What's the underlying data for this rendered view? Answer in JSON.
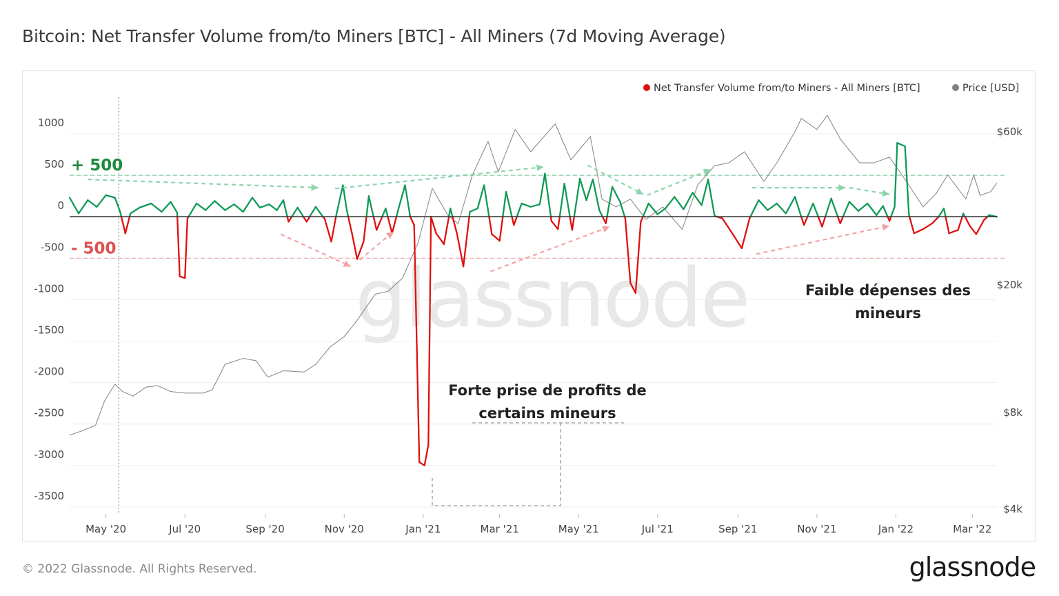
{
  "title": "Bitcoin: Net Transfer Volume from/to Miners [BTC] - All Miners (7d Moving Average)",
  "footer": {
    "copyright": "© 2022 Glassnode. All Rights Reserved.",
    "logo": "glassnode"
  },
  "watermark": "glassnode",
  "chart_data": {
    "type": "line",
    "title": "Bitcoin: Net Transfer Volume from/to Miners [BTC] - All Miners (7d Moving Average)",
    "legend_position": "top-right",
    "grid": true,
    "x_tick_labels": [
      "May '20",
      "Jul '20",
      "Sep '20",
      "Nov '20",
      "Jan '21",
      "Mar '21",
      "May '21",
      "Jul '21",
      "Sep '21",
      "Nov '21",
      "Jan '22",
      "Mar '22"
    ],
    "x_range": [
      "2020-04-03",
      "2022-03-20"
    ],
    "y_left": {
      "ticks": [
        1000,
        500,
        0,
        -500,
        -1000,
        -1500,
        -2000,
        -2500,
        -3000,
        -3500
      ],
      "range": [
        -3500,
        1000
      ]
    },
    "y_right": {
      "ticks": [
        "$60k",
        "$20k",
        "$8k",
        "$4k"
      ],
      "scale": "log",
      "tick_values": [
        60000,
        20000,
        8000,
        4000
      ]
    },
    "legend": [
      {
        "label": "Net Transfer Volume from/to Miners - All Miners [BTC]",
        "color": "#e01010"
      },
      {
        "label": "Price [USD]",
        "color": "#808080"
      }
    ],
    "colors": {
      "positive": "#0f9a55",
      "negative": "#e01010",
      "price": "#8c8c8c",
      "zero_line": "#333333"
    },
    "reference_lines": [
      {
        "label": "+ 500",
        "value": 500,
        "color": "#7fcfa2"
      },
      {
        "label": "- 500",
        "value": -500,
        "color": "#f0a8a8"
      }
    ],
    "annotations": [
      {
        "text": [
          "Forte prise de profits de",
          "certains mineurs"
        ],
        "target": "2021-01-01"
      },
      {
        "text": [
          "Faible dépenses des",
          "mineurs"
        ],
        "target": "2022-01"
      }
    ],
    "series": [
      {
        "name": "Net Transfer Volume from/to Miners - All Miners [BTC]",
        "points": [
          [
            "2020-04-03",
            230
          ],
          [
            "2020-04-10",
            40
          ],
          [
            "2020-04-17",
            200
          ],
          [
            "2020-04-24",
            120
          ],
          [
            "2020-05-01",
            260
          ],
          [
            "2020-05-08",
            230
          ],
          [
            "2020-05-12",
            60
          ],
          [
            "2020-05-16",
            -200
          ],
          [
            "2020-05-20",
            40
          ],
          [
            "2020-05-27",
            110
          ],
          [
            "2020-06-05",
            160
          ],
          [
            "2020-06-13",
            60
          ],
          [
            "2020-06-20",
            180
          ],
          [
            "2020-06-25",
            50
          ],
          [
            "2020-06-27",
            -720
          ],
          [
            "2020-07-01",
            -740
          ],
          [
            "2020-07-03",
            -20
          ],
          [
            "2020-07-10",
            160
          ],
          [
            "2020-07-17",
            80
          ],
          [
            "2020-07-24",
            190
          ],
          [
            "2020-08-01",
            80
          ],
          [
            "2020-08-08",
            150
          ],
          [
            "2020-08-15",
            60
          ],
          [
            "2020-08-22",
            230
          ],
          [
            "2020-08-28",
            110
          ],
          [
            "2020-09-04",
            150
          ],
          [
            "2020-09-10",
            80
          ],
          [
            "2020-09-15",
            200
          ],
          [
            "2020-09-19",
            -60
          ],
          [
            "2020-09-26",
            110
          ],
          [
            "2020-10-03",
            -60
          ],
          [
            "2020-10-10",
            120
          ],
          [
            "2020-10-17",
            -30
          ],
          [
            "2020-10-22",
            -300
          ],
          [
            "2020-10-26",
            30
          ],
          [
            "2020-10-31",
            380
          ],
          [
            "2020-11-03",
            80
          ],
          [
            "2020-11-07",
            -200
          ],
          [
            "2020-11-11",
            -510
          ],
          [
            "2020-11-16",
            -300
          ],
          [
            "2020-11-20",
            250
          ],
          [
            "2020-11-26",
            -160
          ],
          [
            "2020-12-03",
            100
          ],
          [
            "2020-12-08",
            -200
          ],
          [
            "2020-12-13",
            100
          ],
          [
            "2020-12-18",
            380
          ],
          [
            "2020-12-22",
            0
          ],
          [
            "2020-12-25",
            -100
          ],
          [
            "2020-12-27",
            -1500
          ],
          [
            "2020-12-29",
            -2960
          ],
          [
            "2021-01-02",
            -3000
          ],
          [
            "2021-01-05",
            -2750
          ],
          [
            "2021-01-07",
            0
          ],
          [
            "2021-01-11",
            -200
          ],
          [
            "2021-01-17",
            -330
          ],
          [
            "2021-01-22",
            100
          ],
          [
            "2021-01-27",
            -200
          ],
          [
            "2021-02-01",
            -600
          ],
          [
            "2021-02-06",
            60
          ],
          [
            "2021-02-12",
            100
          ],
          [
            "2021-02-17",
            380
          ],
          [
            "2021-02-23",
            -210
          ],
          [
            "2021-03-01",
            -290
          ],
          [
            "2021-03-06",
            300
          ],
          [
            "2021-03-12",
            -100
          ],
          [
            "2021-03-18",
            160
          ],
          [
            "2021-03-25",
            120
          ],
          [
            "2021-04-01",
            150
          ],
          [
            "2021-04-05",
            520
          ],
          [
            "2021-04-10",
            -50
          ],
          [
            "2021-04-15",
            -150
          ],
          [
            "2021-04-20",
            400
          ],
          [
            "2021-04-26",
            -160
          ],
          [
            "2021-05-02",
            460
          ],
          [
            "2021-05-07",
            200
          ],
          [
            "2021-05-12",
            450
          ],
          [
            "2021-05-17",
            80
          ],
          [
            "2021-05-22",
            -80
          ],
          [
            "2021-05-27",
            360
          ],
          [
            "2021-06-02",
            180
          ],
          [
            "2021-06-06",
            -20
          ],
          [
            "2021-06-10",
            -800
          ],
          [
            "2021-06-14",
            -920
          ],
          [
            "2021-06-18",
            -60
          ],
          [
            "2021-06-24",
            160
          ],
          [
            "2021-07-01",
            30
          ],
          [
            "2021-07-07",
            100
          ],
          [
            "2021-07-14",
            240
          ],
          [
            "2021-07-21",
            90
          ],
          [
            "2021-07-28",
            290
          ],
          [
            "2021-08-04",
            140
          ],
          [
            "2021-08-09",
            450
          ],
          [
            "2021-08-14",
            10
          ],
          [
            "2021-08-20",
            -20
          ],
          [
            "2021-08-28",
            -210
          ],
          [
            "2021-09-04",
            -380
          ],
          [
            "2021-09-10",
            -20
          ],
          [
            "2021-09-17",
            200
          ],
          [
            "2021-09-24",
            80
          ],
          [
            "2021-10-01",
            160
          ],
          [
            "2021-10-08",
            40
          ],
          [
            "2021-10-15",
            240
          ],
          [
            "2021-10-22",
            -100
          ],
          [
            "2021-10-29",
            160
          ],
          [
            "2021-11-05",
            -120
          ],
          [
            "2021-11-12",
            220
          ],
          [
            "2021-11-19",
            -80
          ],
          [
            "2021-11-26",
            180
          ],
          [
            "2021-12-03",
            70
          ],
          [
            "2021-12-10",
            160
          ],
          [
            "2021-12-17",
            20
          ],
          [
            "2021-12-22",
            130
          ],
          [
            "2021-12-27",
            -50
          ],
          [
            "2021-12-31",
            120
          ],
          [
            "2022-01-02",
            890
          ],
          [
            "2022-01-08",
            850
          ],
          [
            "2022-01-11",
            30
          ],
          [
            "2022-01-15",
            -200
          ],
          [
            "2022-01-22",
            -150
          ],
          [
            "2022-01-29",
            -80
          ],
          [
            "2022-02-03",
            0
          ],
          [
            "2022-02-07",
            100
          ],
          [
            "2022-02-11",
            -200
          ],
          [
            "2022-02-18",
            -160
          ],
          [
            "2022-02-22",
            40
          ],
          [
            "2022-02-27",
            -110
          ],
          [
            "2022-03-04",
            -210
          ],
          [
            "2022-03-10",
            -40
          ],
          [
            "2022-03-14",
            20
          ],
          [
            "2022-03-20",
            0
          ]
        ]
      },
      {
        "name": "Price [USD]",
        "points": [
          [
            "2020-04-03",
            6800
          ],
          [
            "2020-04-12",
            7000
          ],
          [
            "2020-04-23",
            7300
          ],
          [
            "2020-04-30",
            8700
          ],
          [
            "2020-05-08",
            9800
          ],
          [
            "2020-05-14",
            9300
          ],
          [
            "2020-05-22",
            9000
          ],
          [
            "2020-06-01",
            9600
          ],
          [
            "2020-06-10",
            9700
          ],
          [
            "2020-06-20",
            9300
          ],
          [
            "2020-07-01",
            9200
          ],
          [
            "2020-07-15",
            9200
          ],
          [
            "2020-07-22",
            9400
          ],
          [
            "2020-08-01",
            11300
          ],
          [
            "2020-08-15",
            11800
          ],
          [
            "2020-08-25",
            11600
          ],
          [
            "2020-09-03",
            10300
          ],
          [
            "2020-09-15",
            10800
          ],
          [
            "2020-10-01",
            10700
          ],
          [
            "2020-10-10",
            11300
          ],
          [
            "2020-10-21",
            12800
          ],
          [
            "2020-11-01",
            13800
          ],
          [
            "2020-11-10",
            15300
          ],
          [
            "2020-11-25",
            18700
          ],
          [
            "2020-12-05",
            19100
          ],
          [
            "2020-12-16",
            21000
          ],
          [
            "2020-12-28",
            27000
          ],
          [
            "2021-01-08",
            40000
          ],
          [
            "2021-01-20",
            33000
          ],
          [
            "2021-01-28",
            31000
          ],
          [
            "2021-02-08",
            44000
          ],
          [
            "2021-02-20",
            56000
          ],
          [
            "2021-02-28",
            45000
          ],
          [
            "2021-03-13",
            61000
          ],
          [
            "2021-03-25",
            52000
          ],
          [
            "2021-04-13",
            63500
          ],
          [
            "2021-04-25",
            49000
          ],
          [
            "2021-05-10",
            58000
          ],
          [
            "2021-05-19",
            37000
          ],
          [
            "2021-05-30",
            35000
          ],
          [
            "2021-06-10",
            37000
          ],
          [
            "2021-06-22",
            32000
          ],
          [
            "2021-07-05",
            35000
          ],
          [
            "2021-07-20",
            29800
          ],
          [
            "2021-08-01",
            41000
          ],
          [
            "2021-08-14",
            47000
          ],
          [
            "2021-08-25",
            48000
          ],
          [
            "2021-09-06",
            52000
          ],
          [
            "2021-09-21",
            42000
          ],
          [
            "2021-10-01",
            48000
          ],
          [
            "2021-10-15",
            60000
          ],
          [
            "2021-10-20",
            66000
          ],
          [
            "2021-11-01",
            61000
          ],
          [
            "2021-11-09",
            67500
          ],
          [
            "2021-11-19",
            57000
          ],
          [
            "2021-12-04",
            48000
          ],
          [
            "2021-12-15",
            48000
          ],
          [
            "2021-12-27",
            50000
          ],
          [
            "2022-01-10",
            41500
          ],
          [
            "2022-01-22",
            35000
          ],
          [
            "2022-02-01",
            38500
          ],
          [
            "2022-02-10",
            44000
          ],
          [
            "2022-02-24",
            37000
          ],
          [
            "2022-03-02",
            44000
          ],
          [
            "2022-03-07",
            38000
          ],
          [
            "2022-03-15",
            39000
          ],
          [
            "2022-03-20",
            41500
          ]
        ]
      }
    ]
  }
}
